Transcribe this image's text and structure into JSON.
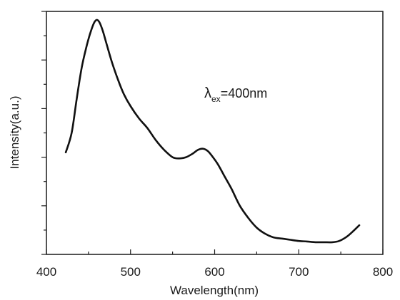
{
  "chart_data": {
    "type": "line",
    "xlabel": "Wavelength(nm)",
    "ylabel": "Intensity(a.u.)",
    "xlim": [
      400,
      800
    ],
    "ylim": [
      0,
      1.0
    ],
    "x_ticks": [
      400,
      500,
      600,
      700,
      800
    ],
    "y_tick_labels_shown": false,
    "grid": false,
    "annotation": {
      "symbol": "λ",
      "subscript": "ex",
      "text": "=400nm"
    },
    "series": [
      {
        "color": "#111111",
        "x": [
          423,
          430,
          436,
          442,
          448,
          453,
          457,
          460,
          463,
          467,
          472,
          478,
          485,
          492,
          500,
          510,
          520,
          530,
          540,
          550,
          558,
          566,
          574,
          580,
          586,
          592,
          598,
          604,
          612,
          620,
          630,
          640,
          650,
          660,
          670,
          680,
          690,
          700,
          710,
          720,
          730,
          740,
          748,
          756,
          763,
          772
        ],
        "y": [
          0.42,
          0.5,
          0.64,
          0.77,
          0.86,
          0.92,
          0.955,
          0.965,
          0.955,
          0.92,
          0.86,
          0.79,
          0.72,
          0.66,
          0.61,
          0.56,
          0.52,
          0.47,
          0.43,
          0.4,
          0.395,
          0.4,
          0.415,
          0.43,
          0.435,
          0.425,
          0.4,
          0.37,
          0.32,
          0.27,
          0.2,
          0.15,
          0.11,
          0.085,
          0.07,
          0.065,
          0.06,
          0.055,
          0.053,
          0.05,
          0.05,
          0.05,
          0.055,
          0.07,
          0.09,
          0.12
        ]
      }
    ]
  }
}
